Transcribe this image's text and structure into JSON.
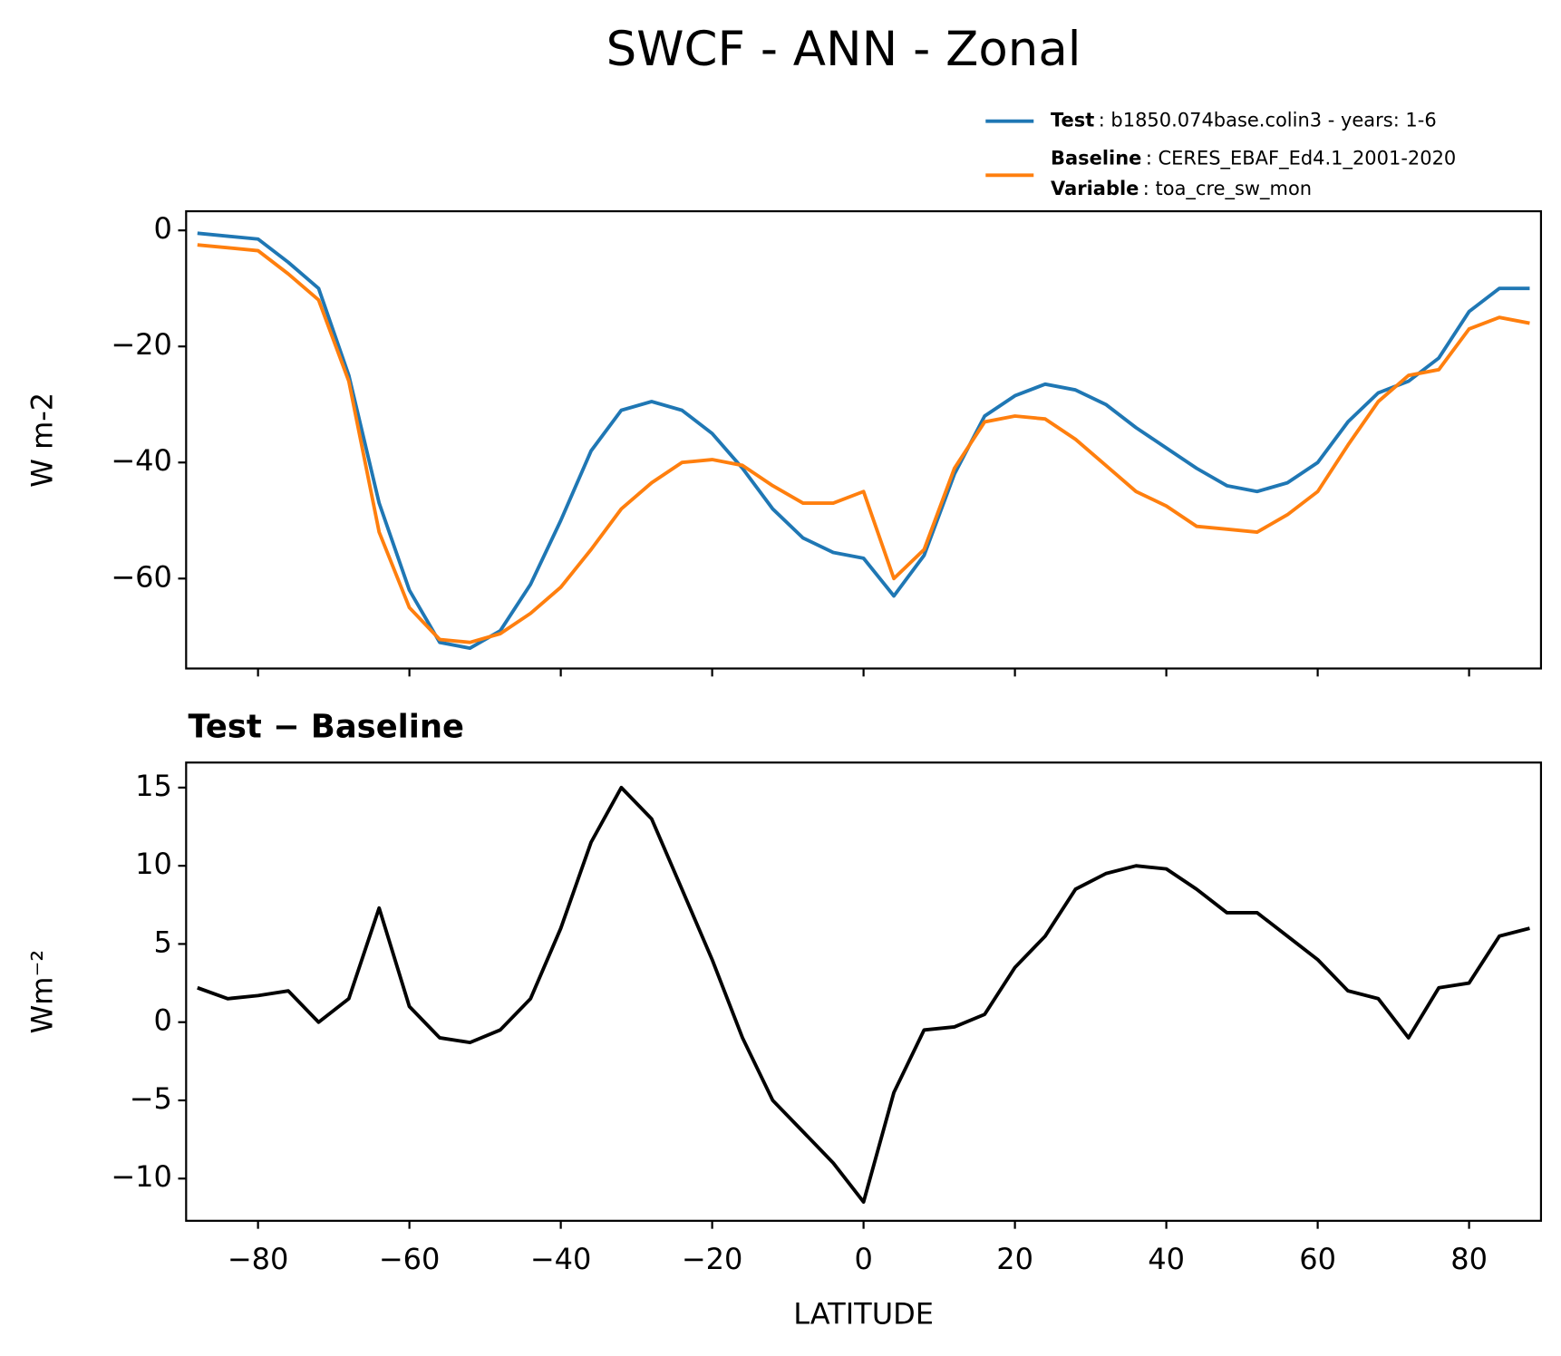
{
  "title": "SWCF - ANN - Zonal",
  "chart_data": [
    {
      "type": "line",
      "ylabel": "W m-2",
      "x": [
        -88,
        -84,
        -80,
        -76,
        -72,
        -68,
        -64,
        -60,
        -56,
        -52,
        -48,
        -44,
        -40,
        -36,
        -32,
        -28,
        -24,
        -20,
        -16,
        -12,
        -8,
        -4,
        0,
        4,
        8,
        12,
        16,
        20,
        24,
        28,
        32,
        36,
        40,
        44,
        48,
        52,
        56,
        60,
        64,
        68,
        72,
        76,
        80,
        84,
        88
      ],
      "series": [
        {
          "name": "Test",
          "legend_text": ": b1850.074base.colin3 - years: 1-6",
          "color": "#1f77b4",
          "values": [
            -0.5,
            -1,
            -1.5,
            -5.5,
            -10,
            -25,
            -47,
            -62,
            -71,
            -72,
            -69,
            -61,
            -50,
            -38,
            -31,
            -29.5,
            -31,
            -35,
            -41,
            -48,
            -53,
            -55.5,
            -56.5,
            -63,
            -56,
            -42,
            -32,
            -28.5,
            -26.5,
            -27.5,
            -30,
            -34,
            -37.5,
            -41,
            -44,
            -45,
            -43.5,
            -40,
            -33,
            -28,
            -26,
            -22,
            -14,
            -10,
            -10
          ]
        },
        {
          "name": "Baseline",
          "legend_text": ": CERES_EBAF_Ed4.1_2001-2020",
          "color": "#ff7f0e",
          "values": [
            -2.5,
            -3,
            -3.5,
            -7.5,
            -12,
            -26,
            -52,
            -65,
            -70.5,
            -71,
            -69.5,
            -66,
            -61.5,
            -55,
            -48,
            -43.5,
            -40,
            -39.5,
            -40.5,
            -44,
            -47,
            -47,
            -45,
            -60,
            -55,
            -41,
            -33,
            -32,
            -32.5,
            -36,
            -40.5,
            -45,
            -47.5,
            -51,
            -51.5,
            -52,
            -49,
            -45,
            -37,
            -29.5,
            -25,
            -24,
            -17,
            -15,
            -16
          ]
        }
      ],
      "legend_extra": {
        "name": "Variable",
        "text": ": toa_cre_sw_mon"
      },
      "xlim": [
        -89.5,
        89.5
      ],
      "ylim": [
        -75.5,
        3.3
      ],
      "xticks": [
        -80,
        -60,
        -40,
        -20,
        0,
        20,
        40,
        60,
        80
      ],
      "yticks": [
        0,
        {
          "value": -20,
          "label": "−20"
        },
        {
          "value": -40,
          "label": "−40"
        },
        {
          "value": -60,
          "label": "−60"
        }
      ]
    },
    {
      "type": "line",
      "title": "Test − Baseline",
      "ylabel": "Wm⁻²",
      "xlabel": "LATITUDE",
      "x": [
        -88,
        -84,
        -80,
        -76,
        -72,
        -68,
        -64,
        -60,
        -56,
        -52,
        -48,
        -44,
        -40,
        -36,
        -32,
        -28,
        -24,
        -20,
        -16,
        -12,
        -8,
        -4,
        0,
        4,
        8,
        12,
        16,
        20,
        24,
        28,
        32,
        36,
        40,
        44,
        48,
        52,
        56,
        60,
        64,
        68,
        72,
        76,
        80,
        84,
        88
      ],
      "series": [
        {
          "color": "#000000",
          "values": [
            2.2,
            1.5,
            1.7,
            2,
            0,
            1.5,
            7.3,
            1,
            -1,
            -1.3,
            -0.5,
            1.5,
            6,
            11.5,
            15,
            13,
            8.5,
            4,
            -1,
            -5,
            -7,
            -9,
            -11.5,
            -4.5,
            -0.5,
            -0.3,
            0.5,
            3.5,
            5.5,
            8.5,
            9.5,
            10,
            9.8,
            8.5,
            7,
            7,
            5.5,
            4,
            2,
            1.5,
            -1,
            2.2,
            2.5,
            5.5,
            6
          ]
        }
      ],
      "xlim": [
        -89.5,
        89.5
      ],
      "ylim": [
        -12.7,
        16.6
      ],
      "xticks": [
        {
          "value": -80,
          "label": "−80"
        },
        {
          "value": -60,
          "label": "−60"
        },
        {
          "value": -40,
          "label": "−40"
        },
        {
          "value": -20,
          "label": "−20"
        },
        0,
        20,
        40,
        60,
        80
      ],
      "yticks": [
        15,
        10,
        5,
        0,
        {
          "value": -5,
          "label": "−5"
        },
        {
          "value": -10,
          "label": "−10"
        }
      ]
    }
  ]
}
